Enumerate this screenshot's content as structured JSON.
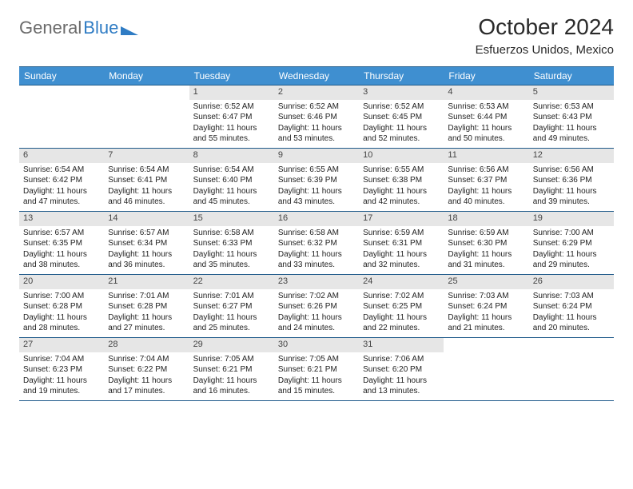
{
  "brand": {
    "part1": "General",
    "part2": "Blue"
  },
  "title": "October 2024",
  "subtitle": "Esfuerzos Unidos, Mexico",
  "colors": {
    "header_bg": "#3f8fd0",
    "header_border": "#1f5a8a",
    "daynum_bg": "#e6e6e6",
    "brand_gray": "#6b6b6b",
    "brand_blue": "#2f7cc4"
  },
  "day_headers": [
    "Sunday",
    "Monday",
    "Tuesday",
    "Wednesday",
    "Thursday",
    "Friday",
    "Saturday"
  ],
  "weeks": [
    [
      {
        "day": "",
        "lines": []
      },
      {
        "day": "",
        "lines": []
      },
      {
        "day": "1",
        "lines": [
          "Sunrise: 6:52 AM",
          "Sunset: 6:47 PM",
          "Daylight: 11 hours and 55 minutes."
        ]
      },
      {
        "day": "2",
        "lines": [
          "Sunrise: 6:52 AM",
          "Sunset: 6:46 PM",
          "Daylight: 11 hours and 53 minutes."
        ]
      },
      {
        "day": "3",
        "lines": [
          "Sunrise: 6:52 AM",
          "Sunset: 6:45 PM",
          "Daylight: 11 hours and 52 minutes."
        ]
      },
      {
        "day": "4",
        "lines": [
          "Sunrise: 6:53 AM",
          "Sunset: 6:44 PM",
          "Daylight: 11 hours and 50 minutes."
        ]
      },
      {
        "day": "5",
        "lines": [
          "Sunrise: 6:53 AM",
          "Sunset: 6:43 PM",
          "Daylight: 11 hours and 49 minutes."
        ]
      }
    ],
    [
      {
        "day": "6",
        "lines": [
          "Sunrise: 6:54 AM",
          "Sunset: 6:42 PM",
          "Daylight: 11 hours and 47 minutes."
        ]
      },
      {
        "day": "7",
        "lines": [
          "Sunrise: 6:54 AM",
          "Sunset: 6:41 PM",
          "Daylight: 11 hours and 46 minutes."
        ]
      },
      {
        "day": "8",
        "lines": [
          "Sunrise: 6:54 AM",
          "Sunset: 6:40 PM",
          "Daylight: 11 hours and 45 minutes."
        ]
      },
      {
        "day": "9",
        "lines": [
          "Sunrise: 6:55 AM",
          "Sunset: 6:39 PM",
          "Daylight: 11 hours and 43 minutes."
        ]
      },
      {
        "day": "10",
        "lines": [
          "Sunrise: 6:55 AM",
          "Sunset: 6:38 PM",
          "Daylight: 11 hours and 42 minutes."
        ]
      },
      {
        "day": "11",
        "lines": [
          "Sunrise: 6:56 AM",
          "Sunset: 6:37 PM",
          "Daylight: 11 hours and 40 minutes."
        ]
      },
      {
        "day": "12",
        "lines": [
          "Sunrise: 6:56 AM",
          "Sunset: 6:36 PM",
          "Daylight: 11 hours and 39 minutes."
        ]
      }
    ],
    [
      {
        "day": "13",
        "lines": [
          "Sunrise: 6:57 AM",
          "Sunset: 6:35 PM",
          "Daylight: 11 hours and 38 minutes."
        ]
      },
      {
        "day": "14",
        "lines": [
          "Sunrise: 6:57 AM",
          "Sunset: 6:34 PM",
          "Daylight: 11 hours and 36 minutes."
        ]
      },
      {
        "day": "15",
        "lines": [
          "Sunrise: 6:58 AM",
          "Sunset: 6:33 PM",
          "Daylight: 11 hours and 35 minutes."
        ]
      },
      {
        "day": "16",
        "lines": [
          "Sunrise: 6:58 AM",
          "Sunset: 6:32 PM",
          "Daylight: 11 hours and 33 minutes."
        ]
      },
      {
        "day": "17",
        "lines": [
          "Sunrise: 6:59 AM",
          "Sunset: 6:31 PM",
          "Daylight: 11 hours and 32 minutes."
        ]
      },
      {
        "day": "18",
        "lines": [
          "Sunrise: 6:59 AM",
          "Sunset: 6:30 PM",
          "Daylight: 11 hours and 31 minutes."
        ]
      },
      {
        "day": "19",
        "lines": [
          "Sunrise: 7:00 AM",
          "Sunset: 6:29 PM",
          "Daylight: 11 hours and 29 minutes."
        ]
      }
    ],
    [
      {
        "day": "20",
        "lines": [
          "Sunrise: 7:00 AM",
          "Sunset: 6:28 PM",
          "Daylight: 11 hours and 28 minutes."
        ]
      },
      {
        "day": "21",
        "lines": [
          "Sunrise: 7:01 AM",
          "Sunset: 6:28 PM",
          "Daylight: 11 hours and 27 minutes."
        ]
      },
      {
        "day": "22",
        "lines": [
          "Sunrise: 7:01 AM",
          "Sunset: 6:27 PM",
          "Daylight: 11 hours and 25 minutes."
        ]
      },
      {
        "day": "23",
        "lines": [
          "Sunrise: 7:02 AM",
          "Sunset: 6:26 PM",
          "Daylight: 11 hours and 24 minutes."
        ]
      },
      {
        "day": "24",
        "lines": [
          "Sunrise: 7:02 AM",
          "Sunset: 6:25 PM",
          "Daylight: 11 hours and 22 minutes."
        ]
      },
      {
        "day": "25",
        "lines": [
          "Sunrise: 7:03 AM",
          "Sunset: 6:24 PM",
          "Daylight: 11 hours and 21 minutes."
        ]
      },
      {
        "day": "26",
        "lines": [
          "Sunrise: 7:03 AM",
          "Sunset: 6:24 PM",
          "Daylight: 11 hours and 20 minutes."
        ]
      }
    ],
    [
      {
        "day": "27",
        "lines": [
          "Sunrise: 7:04 AM",
          "Sunset: 6:23 PM",
          "Daylight: 11 hours and 19 minutes."
        ]
      },
      {
        "day": "28",
        "lines": [
          "Sunrise: 7:04 AM",
          "Sunset: 6:22 PM",
          "Daylight: 11 hours and 17 minutes."
        ]
      },
      {
        "day": "29",
        "lines": [
          "Sunrise: 7:05 AM",
          "Sunset: 6:21 PM",
          "Daylight: 11 hours and 16 minutes."
        ]
      },
      {
        "day": "30",
        "lines": [
          "Sunrise: 7:05 AM",
          "Sunset: 6:21 PM",
          "Daylight: 11 hours and 15 minutes."
        ]
      },
      {
        "day": "31",
        "lines": [
          "Sunrise: 7:06 AM",
          "Sunset: 6:20 PM",
          "Daylight: 11 hours and 13 minutes."
        ]
      },
      {
        "day": "",
        "lines": []
      },
      {
        "day": "",
        "lines": []
      }
    ]
  ]
}
